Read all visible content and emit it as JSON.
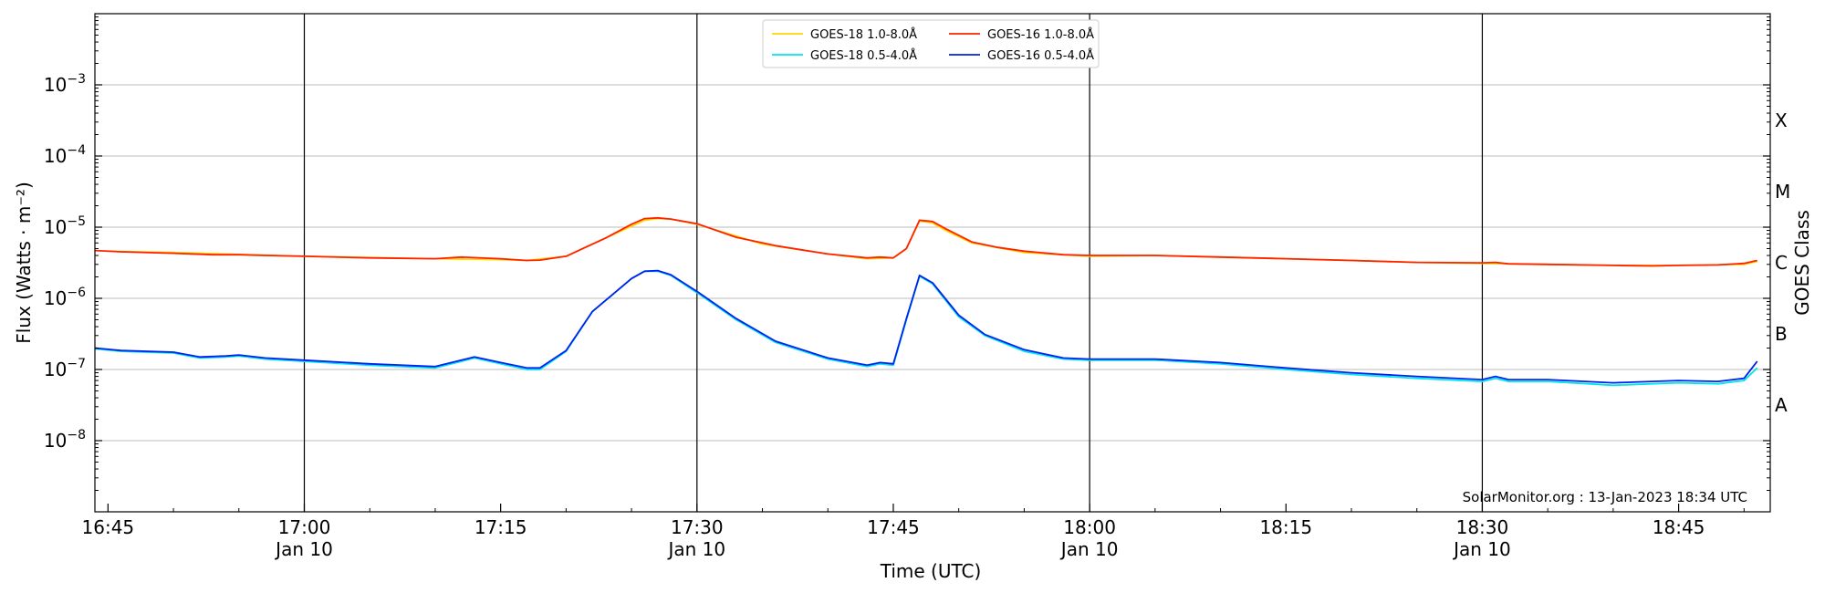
{
  "chart_data": {
    "type": "line",
    "title": "",
    "xlabel": "Time (UTC)",
    "ylabel": "Flux (Watts · m⁻²)",
    "ylabel_right": "GOES Class",
    "yscale": "log",
    "xlim": [
      "16:44",
      "18:52"
    ],
    "ylim": [
      1e-09,
      0.01
    ],
    "x_ticks": [
      {
        "t": "16:45",
        "label": "16:45"
      },
      {
        "t": "17:00",
        "label": "17:00",
        "sublabel": "Jan 10"
      },
      {
        "t": "17:15",
        "label": "17:15"
      },
      {
        "t": "17:30",
        "label": "17:30",
        "sublabel": "Jan 10"
      },
      {
        "t": "17:45",
        "label": "17:45"
      },
      {
        "t": "18:00",
        "label": "18:00",
        "sublabel": "Jan 10"
      },
      {
        "t": "18:15",
        "label": "18:15"
      },
      {
        "t": "18:30",
        "label": "18:30",
        "sublabel": "Jan 10"
      },
      {
        "t": "18:45",
        "label": "18:45"
      }
    ],
    "vertical_lines": [
      "17:00",
      "17:30",
      "18:00",
      "18:30"
    ],
    "y_ticks": [
      {
        "value": 0.001,
        "base": "10",
        "exp": "−3"
      },
      {
        "value": 0.0001,
        "base": "10",
        "exp": "−4"
      },
      {
        "value": 1e-05,
        "base": "10",
        "exp": "−5"
      },
      {
        "value": 1e-06,
        "base": "10",
        "exp": "−6"
      },
      {
        "value": 1e-07,
        "base": "10",
        "exp": "−7"
      },
      {
        "value": 1e-08,
        "base": "10",
        "exp": "−8"
      }
    ],
    "goes_classes": [
      {
        "label": "X",
        "value": 0.0003162
      },
      {
        "label": "M",
        "value": 3.162e-05
      },
      {
        "label": "C",
        "value": 3.162e-06
      },
      {
        "label": "B",
        "value": 3.162e-07
      },
      {
        "label": "A",
        "value": 3.162e-08
      }
    ],
    "grid": "horizontal",
    "legend_position": "top-center",
    "legend": [
      {
        "label": "GOES-18 1.0-8.0Å",
        "color": "#ffd700"
      },
      {
        "label": "GOES-18 0.5-4.0Å",
        "color": "#00e5ee"
      },
      {
        "label": "GOES-16 1.0-8.0Å",
        "color": "#ff2200"
      },
      {
        "label": "GOES-16 0.5-4.0Å",
        "color": "#0022ee"
      }
    ],
    "series": [
      {
        "name": "GOES-18 1.0-8.0Å",
        "color": "#ffd700",
        "x": [
          "16:45",
          "16:50",
          "17:00",
          "17:10",
          "17:15",
          "17:17",
          "17:20",
          "17:23",
          "17:26",
          "17:27",
          "17:28",
          "17:30",
          "17:35",
          "17:40",
          "17:43",
          "17:45",
          "17:46",
          "17:47",
          "17:48",
          "17:49",
          "17:51",
          "17:55",
          "18:00",
          "18:05",
          "18:10",
          "18:15",
          "18:20",
          "18:25",
          "18:30",
          "18:35",
          "18:40",
          "18:45",
          "18:50",
          "18:51"
        ],
        "values": [
          4.6e-06,
          4.4e-06,
          3.9e-06,
          3.6e-06,
          3.5e-06,
          3.4e-06,
          3.9e-06,
          7e-06,
          1.25e-05,
          1.32e-05,
          1.3e-05,
          1.1e-05,
          5.8e-06,
          4.2e-06,
          3.6e-06,
          3.7e-06,
          5e-06,
          1.22e-05,
          1.15e-05,
          9e-06,
          6e-06,
          4.4e-06,
          3.9e-06,
          4e-06,
          3.8e-06,
          3.6e-06,
          3.4e-06,
          3.2e-06,
          3.1e-06,
          3e-06,
          2.9e-06,
          2.9e-06,
          3e-06,
          3.3e-06
        ]
      },
      {
        "name": "GOES-18 0.5-4.0Å",
        "color": "#00e5ee",
        "x": [
          "16:44",
          "16:46",
          "16:50",
          "16:52",
          "16:54",
          "16:55",
          "16:57",
          "17:00",
          "17:05",
          "17:10",
          "17:12",
          "17:13",
          "17:15",
          "17:17",
          "17:18",
          "17:20",
          "17:22",
          "17:25",
          "17:26",
          "17:27",
          "17:28",
          "17:30",
          "17:33",
          "17:36",
          "17:40",
          "17:43",
          "17:44",
          "17:45",
          "17:46",
          "17:47",
          "17:48",
          "17:50",
          "17:52",
          "17:55",
          "17:58",
          "18:00",
          "18:05",
          "18:10",
          "18:15",
          "18:20",
          "18:25",
          "18:30",
          "18:31",
          "18:32",
          "18:35",
          "18:40",
          "18:45",
          "18:48",
          "18:50",
          "18:51"
        ],
        "values": [
          1.95e-07,
          1.8e-07,
          1.7e-07,
          1.45e-07,
          1.5e-07,
          1.55e-07,
          1.4e-07,
          1.3e-07,
          1.15e-07,
          1.05e-07,
          1.3e-07,
          1.45e-07,
          1.2e-07,
          1e-07,
          1e-07,
          1.8e-07,
          6.5e-07,
          1.9e-06,
          2.4e-06,
          2.4e-06,
          2.1e-06,
          1.2e-06,
          5e-07,
          2.4e-07,
          1.4e-07,
          1.1e-07,
          1.2e-07,
          1.15e-07,
          5e-07,
          2.05e-06,
          1.6e-06,
          5.5e-07,
          3e-07,
          1.8e-07,
          1.4e-07,
          1.35e-07,
          1.35e-07,
          1.2e-07,
          1e-07,
          8.5e-08,
          7.5e-08,
          6.8e-08,
          7.5e-08,
          6.8e-08,
          6.8e-08,
          6e-08,
          6.5e-08,
          6.3e-08,
          7e-08,
          1.05e-07
        ]
      },
      {
        "name": "GOES-16 1.0-8.0Å",
        "color": "#ff2200",
        "x": [
          "16:44",
          "16:46",
          "16:50",
          "16:53",
          "16:55",
          "16:57",
          "17:00",
          "17:05",
          "17:10",
          "17:12",
          "17:15",
          "17:17",
          "17:18",
          "17:20",
          "17:23",
          "17:25",
          "17:26",
          "17:27",
          "17:28",
          "17:30",
          "17:33",
          "17:36",
          "17:40",
          "17:43",
          "17:44",
          "17:45",
          "17:46",
          "17:47",
          "17:48",
          "17:49",
          "17:51",
          "17:53",
          "17:55",
          "17:58",
          "18:00",
          "18:05",
          "18:10",
          "18:15",
          "18:20",
          "18:25",
          "18:30",
          "18:31",
          "18:32",
          "18:35",
          "18:40",
          "18:43",
          "18:45",
          "18:48",
          "18:50",
          "18:51"
        ],
        "values": [
          4.7e-06,
          4.5e-06,
          4.3e-06,
          4.1e-06,
          4.1e-06,
          4e-06,
          3.9e-06,
          3.7e-06,
          3.6e-06,
          3.8e-06,
          3.6e-06,
          3.4e-06,
          3.45e-06,
          3.9e-06,
          7e-06,
          1.1e-05,
          1.32e-05,
          1.35e-05,
          1.3e-05,
          1.12e-05,
          7.2e-06,
          5.5e-06,
          4.2e-06,
          3.7e-06,
          3.8e-06,
          3.7e-06,
          5e-06,
          1.25e-05,
          1.2e-05,
          9.5e-06,
          6.2e-06,
          5.2e-06,
          4.6e-06,
          4.1e-06,
          4e-06,
          4e-06,
          3.8e-06,
          3.6e-06,
          3.4e-06,
          3.2e-06,
          3.15e-06,
          3.2e-06,
          3.05e-06,
          3e-06,
          2.9e-06,
          2.85e-06,
          2.9e-06,
          2.95e-06,
          3.1e-06,
          3.4e-06
        ]
      },
      {
        "name": "GOES-16 0.5-4.0Å",
        "color": "#0022ee",
        "x": [
          "16:44",
          "16:46",
          "16:50",
          "16:52",
          "16:54",
          "16:55",
          "16:57",
          "17:00",
          "17:05",
          "17:10",
          "17:12",
          "17:13",
          "17:15",
          "17:17",
          "17:18",
          "17:20",
          "17:22",
          "17:25",
          "17:26",
          "17:27",
          "17:28",
          "17:30",
          "17:33",
          "17:36",
          "17:40",
          "17:43",
          "17:44",
          "17:45",
          "17:46",
          "17:47",
          "17:48",
          "17:50",
          "17:52",
          "17:55",
          "17:58",
          "18:00",
          "18:05",
          "18:10",
          "18:15",
          "18:20",
          "18:25",
          "18:30",
          "18:31",
          "18:32",
          "18:35",
          "18:40",
          "18:45",
          "18:48",
          "18:50",
          "18:51"
        ],
        "values": [
          2e-07,
          1.85e-07,
          1.75e-07,
          1.5e-07,
          1.55e-07,
          1.6e-07,
          1.45e-07,
          1.35e-07,
          1.2e-07,
          1.1e-07,
          1.35e-07,
          1.5e-07,
          1.25e-07,
          1.05e-07,
          1.05e-07,
          1.85e-07,
          6.5e-07,
          1.9e-06,
          2.4e-06,
          2.45e-06,
          2.15e-06,
          1.25e-06,
          5.2e-07,
          2.5e-07,
          1.45e-07,
          1.15e-07,
          1.25e-07,
          1.2e-07,
          5.2e-07,
          2.1e-06,
          1.65e-06,
          5.8e-07,
          3.1e-07,
          1.9e-07,
          1.45e-07,
          1.4e-07,
          1.4e-07,
          1.25e-07,
          1.05e-07,
          9e-08,
          8e-08,
          7.2e-08,
          8e-08,
          7.2e-08,
          7.2e-08,
          6.5e-08,
          7e-08,
          6.8e-08,
          7.5e-08,
          1.3e-07
        ]
      }
    ],
    "annotation": "SolarMonitor.org : 13-Jan-2023 18:34 UTC"
  }
}
